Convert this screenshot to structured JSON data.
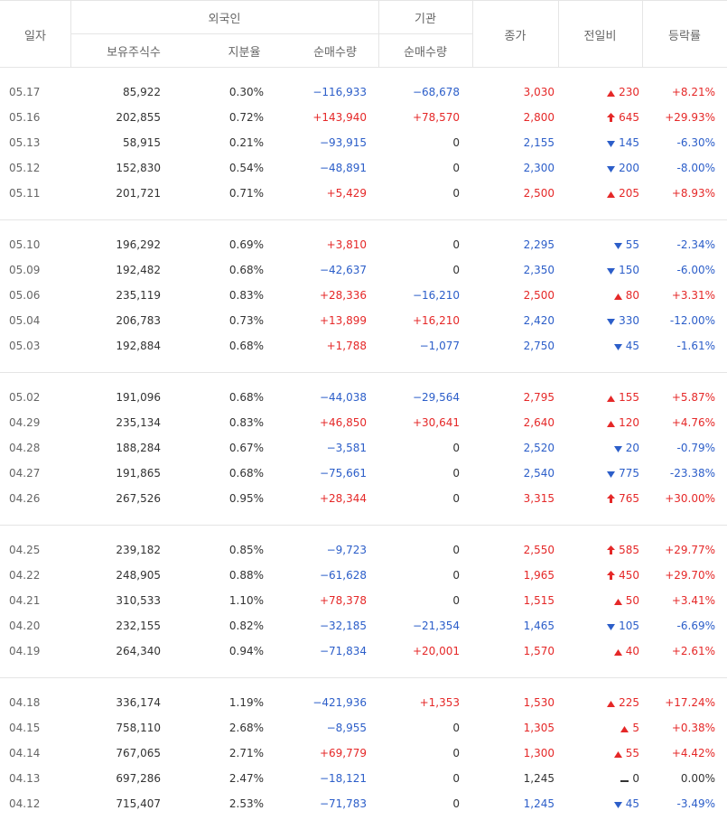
{
  "header": {
    "date": "일자",
    "foreign": "외국인",
    "institution": "기관",
    "close": "종가",
    "change": "전일비",
    "rate": "등락률",
    "holdings": "보유주식수",
    "ratio": "지분율",
    "foreign_net": "순매수량",
    "inst_net": "순매수량"
  },
  "groups": [
    [
      [
        "05.17",
        "85,922",
        "0.30%",
        "−116,933",
        "−68,678",
        "3,030",
        "230",
        "+8.21%"
      ],
      [
        "05.16",
        "202,855",
        "0.72%",
        "+143,940",
        "+78,570",
        "2,800",
        "645",
        "+29.93%"
      ],
      [
        "05.13",
        "58,915",
        "0.21%",
        "−93,915",
        "0",
        "2,155",
        "145",
        "-6.30%"
      ],
      [
        "05.12",
        "152,830",
        "0.54%",
        "−48,891",
        "0",
        "2,300",
        "200",
        "-8.00%"
      ],
      [
        "05.11",
        "201,721",
        "0.71%",
        "+5,429",
        "0",
        "2,500",
        "205",
        "+8.93%"
      ]
    ],
    [
      [
        "05.10",
        "196,292",
        "0.69%",
        "+3,810",
        "0",
        "2,295",
        "55",
        "-2.34%"
      ],
      [
        "05.09",
        "192,482",
        "0.68%",
        "−42,637",
        "0",
        "2,350",
        "150",
        "-6.00%"
      ],
      [
        "05.06",
        "235,119",
        "0.83%",
        "+28,336",
        "−16,210",
        "2,500",
        "80",
        "+3.31%"
      ],
      [
        "05.04",
        "206,783",
        "0.73%",
        "+13,899",
        "+16,210",
        "2,420",
        "330",
        "-12.00%"
      ],
      [
        "05.03",
        "192,884",
        "0.68%",
        "+1,788",
        "−1,077",
        "2,750",
        "45",
        "-1.61%"
      ]
    ],
    [
      [
        "05.02",
        "191,096",
        "0.68%",
        "−44,038",
        "−29,564",
        "2,795",
        "155",
        "+5.87%"
      ],
      [
        "04.29",
        "235,134",
        "0.83%",
        "+46,850",
        "+30,641",
        "2,640",
        "120",
        "+4.76%"
      ],
      [
        "04.28",
        "188,284",
        "0.67%",
        "−3,581",
        "0",
        "2,520",
        "20",
        "-0.79%"
      ],
      [
        "04.27",
        "191,865",
        "0.68%",
        "−75,661",
        "0",
        "2,540",
        "775",
        "-23.38%"
      ],
      [
        "04.26",
        "267,526",
        "0.95%",
        "+28,344",
        "0",
        "3,315",
        "765",
        "+30.00%"
      ]
    ],
    [
      [
        "04.25",
        "239,182",
        "0.85%",
        "−9,723",
        "0",
        "2,550",
        "585",
        "+29.77%"
      ],
      [
        "04.22",
        "248,905",
        "0.88%",
        "−61,628",
        "0",
        "1,965",
        "450",
        "+29.70%"
      ],
      [
        "04.21",
        "310,533",
        "1.10%",
        "+78,378",
        "0",
        "1,515",
        "50",
        "+3.41%"
      ],
      [
        "04.20",
        "232,155",
        "0.82%",
        "−32,185",
        "−21,354",
        "1,465",
        "105",
        "-6.69%"
      ],
      [
        "04.19",
        "264,340",
        "0.94%",
        "−71,834",
        "+20,001",
        "1,570",
        "40",
        "+2.61%"
      ]
    ],
    [
      [
        "04.18",
        "336,174",
        "1.19%",
        "−421,936",
        "+1,353",
        "1,530",
        "225",
        "+17.24%"
      ],
      [
        "04.15",
        "758,110",
        "2.68%",
        "−8,955",
        "0",
        "1,305",
        "5",
        "+0.38%"
      ],
      [
        "04.14",
        "767,065",
        "2.71%",
        "+69,779",
        "0",
        "1,300",
        "55",
        "+4.42%"
      ],
      [
        "04.13",
        "697,286",
        "2.47%",
        "−18,121",
        "0",
        "1,245",
        "0",
        "0.00%"
      ],
      [
        "04.12",
        "715,407",
        "2.53%",
        "−71,783",
        "0",
        "1,245",
        "45",
        "-3.49%"
      ]
    ]
  ]
}
